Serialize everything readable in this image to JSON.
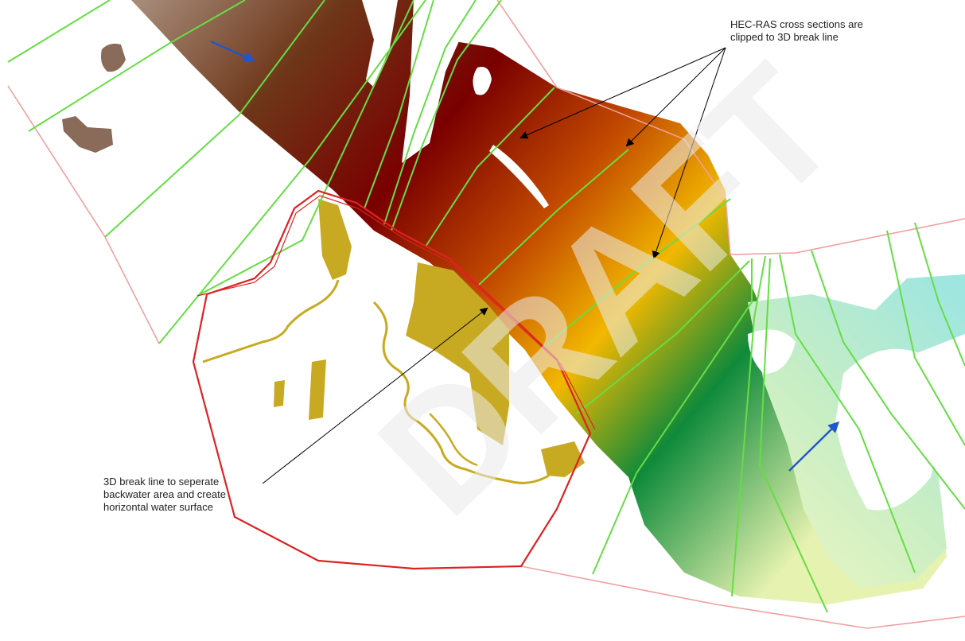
{
  "annotations": {
    "cross_sections_callout": {
      "lines": [
        "HEC-RAS cross sections are",
        "clipped to 3D break line"
      ]
    },
    "break_line_callout": {
      "lines": [
        "3D break line to seperate",
        "backwater area and create",
        "horizontal water surface"
      ]
    }
  },
  "watermark": {
    "text": "DRAFT"
  },
  "colors": {
    "cross_section_line": "#66dd44",
    "break_line": "#dd2222",
    "model_boundary": "#f0a0a0",
    "backwater_area": "#c8aa22",
    "flow_arrow": "#2255cc",
    "callout_arrow": "#000000",
    "elevation_high": "#7a0000",
    "elevation_mid": "#f2b800",
    "elevation_low": "#0f8a3a",
    "elevation_downstream": "#9fe6e0"
  },
  "icons": {
    "flow_direction": "arrow-icon",
    "callout_pointer": "arrow-icon"
  }
}
